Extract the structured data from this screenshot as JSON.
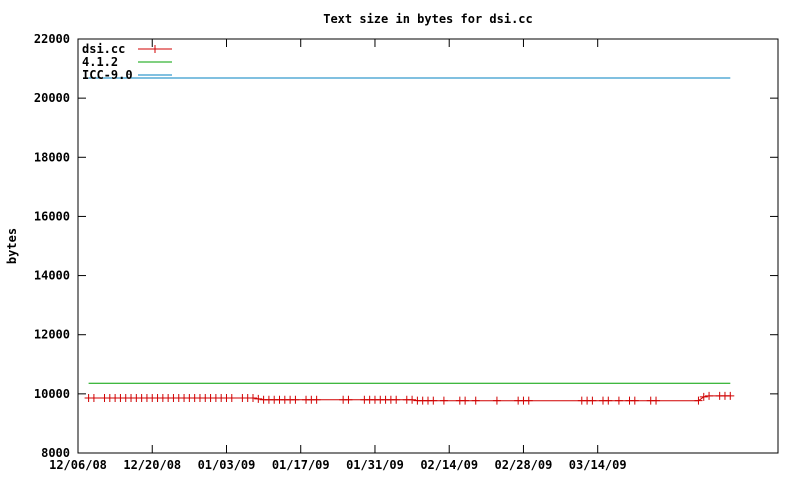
{
  "chart_data": {
    "type": "line",
    "title": "Text size in bytes for dsi.cc",
    "xlabel": "",
    "ylabel": "bytes",
    "ylim": [
      8000,
      22000
    ],
    "xlim": [
      "2008-12-06",
      "2009-04-17"
    ],
    "yticks": [
      8000,
      10000,
      12000,
      14000,
      16000,
      18000,
      20000,
      22000
    ],
    "xticks": [
      "12/06/08",
      "12/20/08",
      "01/03/09",
      "01/17/09",
      "01/31/09",
      "02/14/09",
      "02/28/09",
      "03/14/09"
    ],
    "legend_position": "top-left",
    "grid": false,
    "series": [
      {
        "name": "dsi.cc",
        "color": "#d00000",
        "marker": "plus",
        "points": [
          [
            "2008-12-08",
            9860
          ],
          [
            "2008-12-09",
            9860
          ],
          [
            "2008-12-11",
            9860
          ],
          [
            "2008-12-12",
            9860
          ],
          [
            "2008-12-13",
            9860
          ],
          [
            "2008-12-14",
            9860
          ],
          [
            "2008-12-15",
            9860
          ],
          [
            "2008-12-16",
            9860
          ],
          [
            "2008-12-17",
            9860
          ],
          [
            "2008-12-18",
            9860
          ],
          [
            "2008-12-19",
            9860
          ],
          [
            "2008-12-20",
            9860
          ],
          [
            "2008-12-21",
            9860
          ],
          [
            "2008-12-22",
            9860
          ],
          [
            "2008-12-23",
            9860
          ],
          [
            "2008-12-24",
            9860
          ],
          [
            "2008-12-25",
            9860
          ],
          [
            "2008-12-26",
            9860
          ],
          [
            "2008-12-27",
            9860
          ],
          [
            "2008-12-28",
            9860
          ],
          [
            "2008-12-29",
            9860
          ],
          [
            "2008-12-30",
            9860
          ],
          [
            "2008-12-31",
            9860
          ],
          [
            "2009-01-01",
            9860
          ],
          [
            "2009-01-02",
            9860
          ],
          [
            "2009-01-03",
            9860
          ],
          [
            "2009-01-04",
            9860
          ],
          [
            "2009-01-06",
            9860
          ],
          [
            "2009-01-07",
            9860
          ],
          [
            "2009-01-08",
            9860
          ],
          [
            "2009-01-09",
            9830
          ],
          [
            "2009-01-10",
            9800
          ],
          [
            "2009-01-11",
            9800
          ],
          [
            "2009-01-12",
            9800
          ],
          [
            "2009-01-13",
            9800
          ],
          [
            "2009-01-14",
            9800
          ],
          [
            "2009-01-15",
            9800
          ],
          [
            "2009-01-16",
            9800
          ],
          [
            "2009-01-18",
            9800
          ],
          [
            "2009-01-19",
            9800
          ],
          [
            "2009-01-20",
            9800
          ],
          [
            "2009-01-25",
            9800
          ],
          [
            "2009-01-26",
            9800
          ],
          [
            "2009-01-29",
            9800
          ],
          [
            "2009-01-30",
            9800
          ],
          [
            "2009-01-31",
            9800
          ],
          [
            "2009-02-01",
            9800
          ],
          [
            "2009-02-02",
            9800
          ],
          [
            "2009-02-03",
            9800
          ],
          [
            "2009-02-04",
            9800
          ],
          [
            "2009-02-06",
            9800
          ],
          [
            "2009-02-07",
            9800
          ],
          [
            "2009-02-08",
            9770
          ],
          [
            "2009-02-09",
            9770
          ],
          [
            "2009-02-10",
            9770
          ],
          [
            "2009-02-11",
            9770
          ],
          [
            "2009-02-13",
            9770
          ],
          [
            "2009-02-16",
            9770
          ],
          [
            "2009-02-17",
            9770
          ],
          [
            "2009-02-19",
            9770
          ],
          [
            "2009-02-23",
            9770
          ],
          [
            "2009-02-27",
            9770
          ],
          [
            "2009-02-28",
            9770
          ],
          [
            "2009-03-01",
            9770
          ],
          [
            "2009-03-11",
            9770
          ],
          [
            "2009-03-12",
            9770
          ],
          [
            "2009-03-13",
            9770
          ],
          [
            "2009-03-15",
            9770
          ],
          [
            "2009-03-16",
            9770
          ],
          [
            "2009-03-18",
            9770
          ],
          [
            "2009-03-20",
            9770
          ],
          [
            "2009-03-21",
            9770
          ],
          [
            "2009-03-24",
            9770
          ],
          [
            "2009-03-25",
            9770
          ],
          [
            "2009-04-02",
            9770
          ],
          [
            "2009-04-03",
            9900
          ],
          [
            "2009-04-04",
            9930
          ],
          [
            "2009-04-06",
            9930
          ],
          [
            "2009-04-07",
            9930
          ],
          [
            "2009-04-08",
            9930
          ]
        ]
      },
      {
        "name": "4.1.2",
        "color": "#00a000",
        "marker": "none",
        "points": [
          [
            "2008-12-08",
            10360
          ],
          [
            "2009-04-08",
            10360
          ]
        ]
      },
      {
        "name": "ICC-9.0",
        "color": "#0080c0",
        "marker": "none",
        "points": [
          [
            "2008-12-08",
            20680
          ],
          [
            "2009-04-08",
            20680
          ]
        ]
      }
    ]
  }
}
